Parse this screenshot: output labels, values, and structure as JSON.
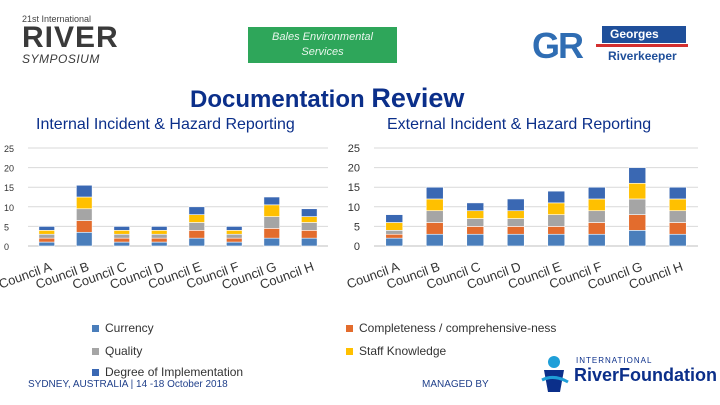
{
  "header": {
    "river_small": "21st International",
    "river_big": "RIVER",
    "river_sym": "SYMPOSIUM",
    "bales_line1": "Bales Environmental",
    "bales_line2": "Services",
    "gr_letters": "GR",
    "gr_top": "Georges",
    "gr_bottom": "Riverkeeper"
  },
  "title": {
    "main": "Documentation",
    "main_big": "Review"
  },
  "subtitles": {
    "left": "Internal Incident & Hazard Reporting",
    "right": "External Incident & Hazard Reporting"
  },
  "colors": {
    "currency": "#4a7ebb",
    "completeness": "#e36c2d",
    "quality": "#a5a5a5",
    "staff": "#ffc000",
    "degree": "#3a68b3"
  },
  "legend": {
    "currency": "Currency",
    "completeness": "Completeness / comprehensive-ness",
    "quality": "Quality",
    "staff": "Staff Knowledge",
    "degree": "Degree of Implementation"
  },
  "footer": {
    "location": "SYDNEY, AUSTRALIA | 14 -18 October 2018",
    "managed": "MANAGED BY",
    "irf_top": "INTERNATIONAL",
    "irf_bottom": "RiverFoundation"
  },
  "chart_data": [
    {
      "type": "bar",
      "stacked": true,
      "title": "Internal Incident & Hazard Reporting",
      "categories": [
        "Council A",
        "Council B",
        "Council C",
        "Council D",
        "Council E",
        "Council F",
        "Council G",
        "Council H"
      ],
      "ylim": [
        0,
        25
      ],
      "yticks": [
        0,
        5,
        10,
        15,
        20,
        25
      ],
      "series": [
        {
          "name": "Currency",
          "values": [
            1,
            3.5,
            1,
            1,
            2,
            1,
            2,
            2
          ]
        },
        {
          "name": "Completeness / comprehensive-ness",
          "values": [
            1,
            3,
            1,
            1,
            2,
            1,
            2.5,
            2
          ]
        },
        {
          "name": "Quality",
          "values": [
            1,
            3,
            1,
            1,
            2,
            1,
            3,
            2
          ]
        },
        {
          "name": "Staff Knowledge",
          "values": [
            1,
            3,
            1,
            1,
            2,
            1,
            3,
            1.5
          ]
        },
        {
          "name": "Degree of Implementation",
          "values": [
            1,
            3,
            1,
            1,
            2,
            1,
            2,
            2
          ]
        }
      ]
    },
    {
      "type": "bar",
      "stacked": true,
      "title": "External Incident & Hazard Reporting",
      "categories": [
        "Council A",
        "Council B",
        "Council C",
        "Council D",
        "Council E",
        "Council F",
        "Council G",
        "Council H"
      ],
      "ylim": [
        0,
        25
      ],
      "yticks": [
        0,
        5,
        10,
        15,
        20,
        25
      ],
      "series": [
        {
          "name": "Currency",
          "values": [
            2,
            3,
            3,
            3,
            3,
            3,
            4,
            3
          ]
        },
        {
          "name": "Completeness / comprehensive-ness",
          "values": [
            1,
            3,
            2,
            2,
            2,
            3,
            4,
            3
          ]
        },
        {
          "name": "Quality",
          "values": [
            1,
            3,
            2,
            2,
            3,
            3,
            4,
            3
          ]
        },
        {
          "name": "Staff Knowledge",
          "values": [
            2,
            3,
            2,
            2,
            3,
            3,
            4,
            3
          ]
        },
        {
          "name": "Degree of Implementation",
          "values": [
            2,
            3,
            2,
            3,
            3,
            3,
            4,
            3
          ]
        }
      ]
    }
  ]
}
